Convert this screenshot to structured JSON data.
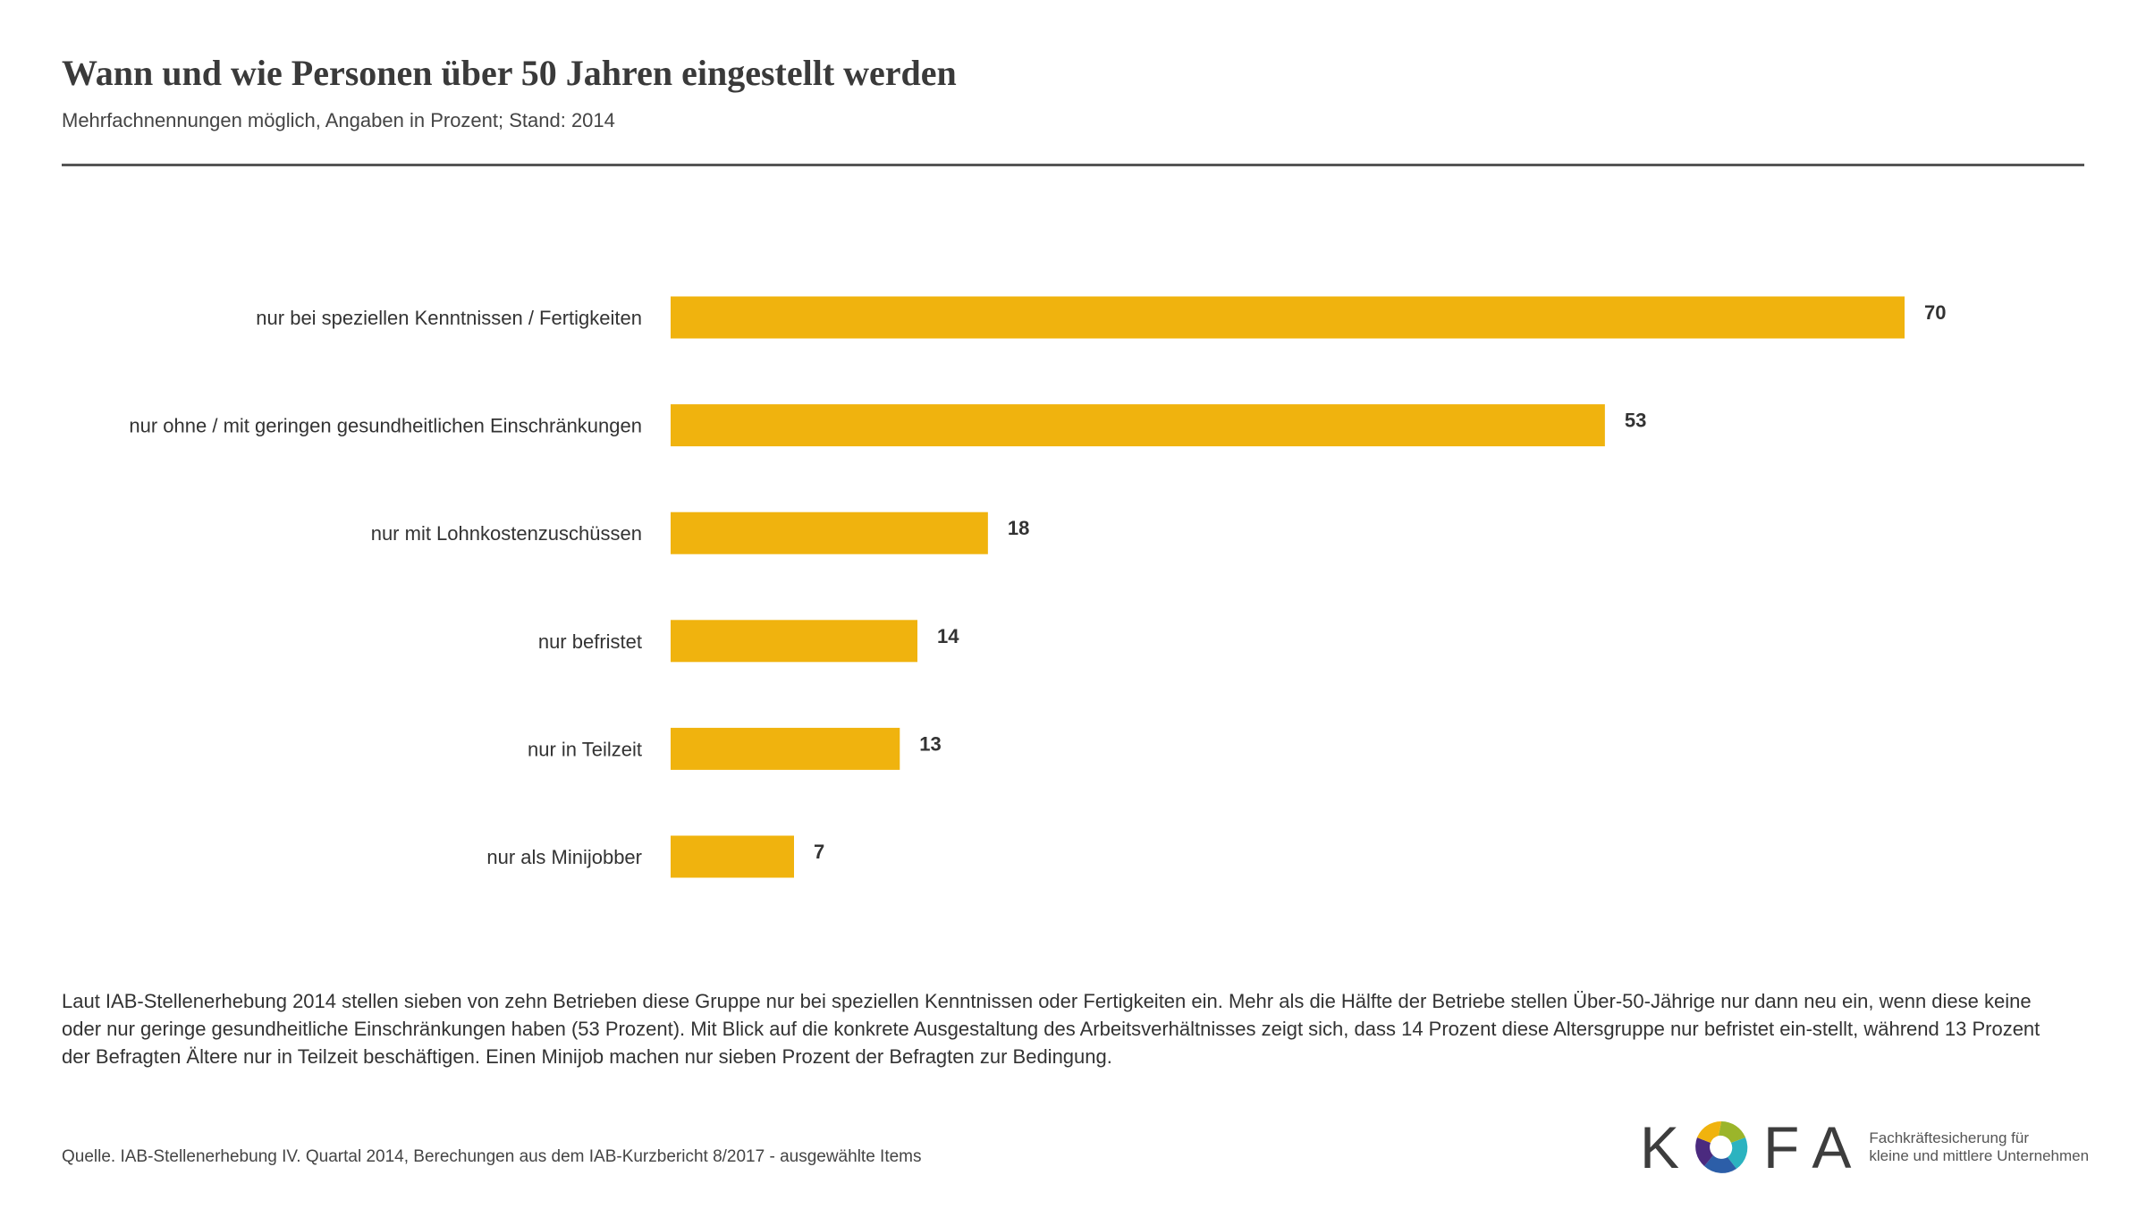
{
  "header": {
    "title": "Wann und wie Personen über 50 Jahren eingestellt werden",
    "subtitle": "Mehrfachnennungen möglich, Angaben in Prozent; Stand: 2014"
  },
  "chart_data": {
    "type": "bar",
    "orientation": "horizontal",
    "title": "Wann und wie Personen über 50 Jahren eingestellt werden",
    "categories": [
      "nur bei speziellen Kenntnissen / Fertigkeiten",
      "nur ohne / mit geringen gesundheitlichen Einschränkungen",
      "nur mit Lohnkostenzuschüssen",
      "nur befristet",
      "nur in Teilzeit",
      "nur als Minijobber"
    ],
    "values": [
      70,
      53,
      18,
      14,
      13,
      7
    ],
    "xlabel": "",
    "ylabel": "",
    "xlim": [
      0,
      70
    ],
    "grid": false,
    "color": "#f0b30e"
  },
  "description": "Laut IAB-Stellenerhebung 2014 stellen sieben von zehn Betrieben diese Gruppe nur bei speziellen Kenntnissen oder Fertigkeiten ein. Mehr als die Hälfte der Betriebe stellen Über-50-Jährige nur dann neu ein, wenn diese keine oder nur geringe gesundheitliche Einschränkungen haben (53 Prozent). Mit Blick auf die konkrete Ausgestaltung des Arbeitsverhältnisses zeigt sich, dass 14 Prozent diese Altersgruppe nur befristet ein-stellt, während 13 Prozent der Befragten Ältere nur in Teilzeit beschäftigen. Einen Minijob machen nur sieben Prozent der Befragten zur Bedingung.",
  "source": "Quelle. IAB-Stellenerhebung IV. Quartal 2014, Berechungen aus dem IAB-Kurzbericht 8/2017 - ausgewählte Items",
  "logo": {
    "letters": "KOFA",
    "tagline_1": "Fachkräftesicherung für",
    "tagline_2": "kleine und mittlere Unternehmen"
  }
}
